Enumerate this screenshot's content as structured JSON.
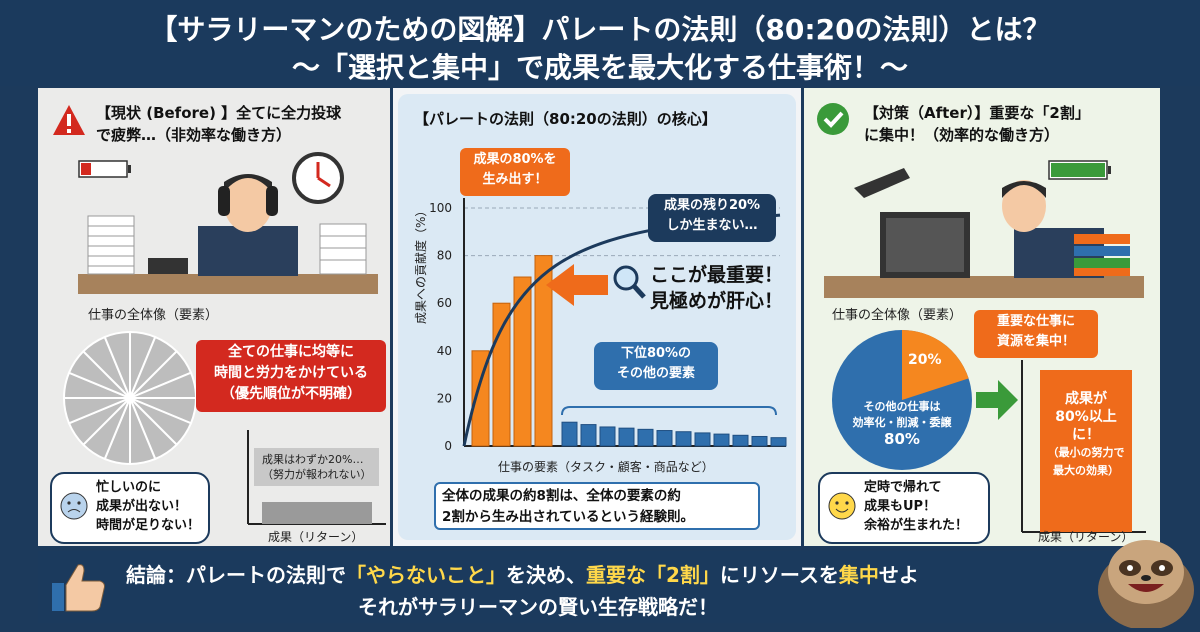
{
  "header": {
    "title_line1": "【サラリーマンのための図解】パレートの法則（80:20の法則）とは？",
    "title_line2": "〜「選択と集中」で成果を最大化する仕事術！〜"
  },
  "left": {
    "heading_line1": "【現状 (Before) 】全てに全力投球",
    "heading_line2": "で疲弊…（非効率な働き方）",
    "pie_label": "仕事の全体像（要素）",
    "callout_lines": [
      "全ての仕事に均等に",
      "時間と労力をかけている",
      "（優先順位が不明確）"
    ],
    "result_lines": [
      "成果はわずか20%…",
      "（努力が報われない）"
    ],
    "axis_label": "成果（リターン）",
    "speech_lines": [
      "忙しいのに",
      "成果が出ない！",
      "時間が足りない！"
    ]
  },
  "mid": {
    "heading": "【パレートの法則（80:20の法則）の核心】",
    "top_callout_lines": [
      "成果の80%を",
      "生み出す！"
    ],
    "dark_callout_lines": [
      "成果の残り20%",
      "しか生まない…"
    ],
    "emphasis_lines": [
      "ここが最重要！",
      "見極めが肝心！"
    ],
    "lower_callout_lines": [
      "下位80%の",
      "その他の要素"
    ],
    "bottom_text_lines": [
      "全体の成果の約8割は、全体の要素の約",
      "2割から生み出されているという経験則。"
    ]
  },
  "chart_data": {
    "type": "bar",
    "title": "【パレートの法則（80:20の法則）の核心】",
    "xlabel": "仕事の要素（タスク・顧客・商品など）",
    "ylabel": "成果への貢献度（%）",
    "ylim": [
      0,
      100
    ],
    "yticks": [
      "0",
      "20",
      "40",
      "60",
      "80",
      "100"
    ],
    "grid": "dashed at 80 and 100",
    "series": [
      {
        "values": [
          40,
          60,
          71,
          80,
          10,
          9,
          8,
          7.5,
          7,
          6.5,
          6,
          5.5,
          5,
          4.5,
          4,
          3.5
        ],
        "colors": [
          "#f5871f",
          "#f5871f",
          "#f5871f",
          "#f5871f",
          "#2f6fad",
          "#2f6fad",
          "#2f6fad",
          "#2f6fad",
          "#2f6fad",
          "#2f6fad",
          "#2f6fad",
          "#2f6fad",
          "#2f6fad",
          "#2f6fad",
          "#2f6fad",
          "#2f6fad"
        ]
      }
    ],
    "cumulative_curve": true
  },
  "right": {
    "heading_line1": "【対策（After）】重要な「2割」",
    "heading_line2": "に集中！（効率的な働き方）",
    "pie_label": "仕事の全体像（要素）",
    "callout_lines": [
      "重要な仕事に",
      "資源を集中！"
    ],
    "pie_small_label": "20%",
    "pie_big_lines": [
      "その他の仕事は",
      "効率化・削減・委譲",
      "80%"
    ],
    "bar_lines": [
      "成果が",
      "80%以上",
      "に！",
      "（最小の努力で",
      "最大の効果）"
    ],
    "axis_label": "成果（リターン）",
    "speech_lines": [
      "定時で帰れて",
      "成果もUP！",
      "余裕が生まれた！"
    ]
  },
  "footer": {
    "line1_a": "結論：パレートの法則で",
    "line1_b": "「やらないこと」",
    "line1_c": "を決め、",
    "line1_d": "重要な「2割」",
    "line1_e": "にリソースを",
    "line1_f": "集中",
    "line1_g": "せよ",
    "line2": "それがサラリーマンの賢い生存戦略だ！"
  },
  "colors": {
    "navy": "#1b3a5d",
    "orange": "#f5871f",
    "blue": "#2f6fad",
    "red": "#d3291f",
    "yellow": "#ffd84a"
  }
}
